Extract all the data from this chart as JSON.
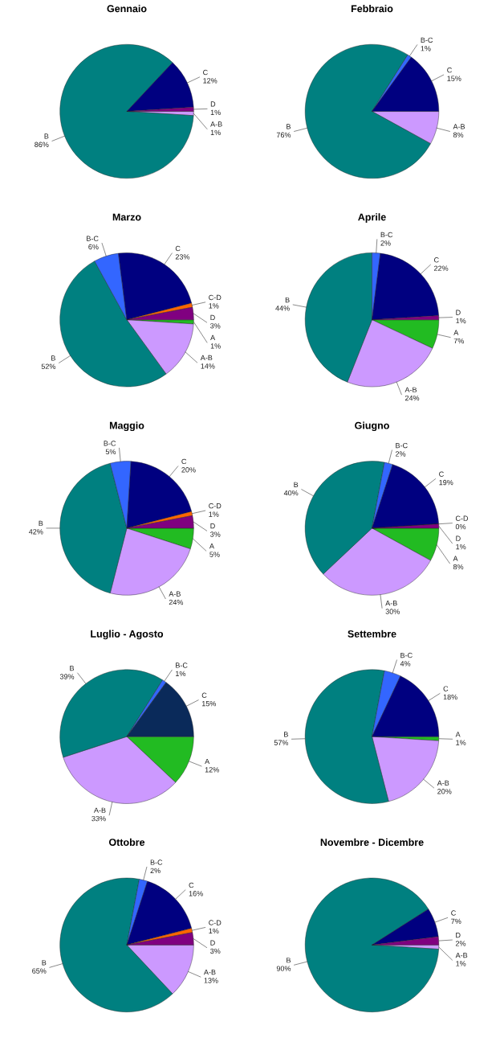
{
  "chart_data": [
    {
      "type": "pie",
      "title": "Gennaio",
      "categories": [
        "A-B",
        "B",
        "C",
        "D"
      ],
      "values": [
        1,
        86,
        12,
        1
      ],
      "value_labels": [
        "1%",
        "86%",
        "12%",
        "1%"
      ],
      "colors": [
        "#cc99ff",
        "#008080",
        "#000080",
        "#800080"
      ]
    },
    {
      "type": "pie",
      "title": "Febbraio",
      "categories": [
        "A-B",
        "B",
        "B-C",
        "C"
      ],
      "values": [
        8,
        76,
        1,
        15
      ],
      "value_labels": [
        "8%",
        "76%",
        "1%",
        "15%"
      ],
      "colors": [
        "#cc99ff",
        "#008080",
        "#3366ff",
        "#000080"
      ]
    },
    {
      "type": "pie",
      "title": "Marzo",
      "categories": [
        "A",
        "A-B",
        "B",
        "B-C",
        "C",
        "C-D",
        "D"
      ],
      "values": [
        1,
        14,
        52,
        6,
        23,
        1,
        3
      ],
      "value_labels": [
        "1%",
        "14%",
        "52%",
        "6%",
        "23%",
        "1%",
        "3%"
      ],
      "colors": [
        "#22bb22",
        "#cc99ff",
        "#008080",
        "#3366ff",
        "#000080",
        "#ff6600",
        "#800080"
      ]
    },
    {
      "type": "pie",
      "title": "Aprile",
      "categories": [
        "A",
        "A-B",
        "B",
        "B-C",
        "C",
        "D"
      ],
      "values": [
        7,
        24,
        44,
        2,
        22,
        1
      ],
      "value_labels": [
        "7%",
        "24%",
        "44%",
        "2%",
        "22%",
        "1%"
      ],
      "colors": [
        "#22bb22",
        "#cc99ff",
        "#008080",
        "#3366ff",
        "#000080",
        "#800080"
      ]
    },
    {
      "type": "pie",
      "title": "Maggio",
      "categories": [
        "A",
        "A-B",
        "B",
        "B-C",
        "C",
        "C-D",
        "D"
      ],
      "values": [
        5,
        24,
        42,
        5,
        20,
        1,
        3
      ],
      "value_labels": [
        "5%",
        "24%",
        "42%",
        "5%",
        "20%",
        "1%",
        "3%"
      ],
      "colors": [
        "#22bb22",
        "#cc99ff",
        "#008080",
        "#3366ff",
        "#000080",
        "#ff6600",
        "#800080"
      ]
    },
    {
      "type": "pie",
      "title": "Giugno",
      "categories": [
        "A",
        "A-B",
        "B",
        "B-C",
        "C",
        "C-D",
        "D"
      ],
      "values": [
        8,
        30,
        40,
        2,
        19,
        0,
        1
      ],
      "value_labels": [
        "8%",
        "30%",
        "40%",
        "2%",
        "19%",
        "0%",
        "1%"
      ],
      "colors": [
        "#22bb22",
        "#cc99ff",
        "#008080",
        "#3366ff",
        "#000080",
        "#ff6600",
        "#800080"
      ]
    },
    {
      "type": "pie",
      "title": "Luglio - Agosto",
      "categories": [
        "A",
        "A-B",
        "B",
        "B-C",
        "C"
      ],
      "values": [
        12,
        33,
        39,
        1,
        15
      ],
      "value_labels": [
        "12%",
        "33%",
        "39%",
        "1%",
        "15%"
      ],
      "colors": [
        "#22bb22",
        "#cc99ff",
        "#008080",
        "#3366ff",
        "#0a2a5a"
      ]
    },
    {
      "type": "pie",
      "title": "Settembre",
      "categories": [
        "A",
        "A-B",
        "B",
        "B-C",
        "C"
      ],
      "values": [
        1,
        20,
        57,
        4,
        18
      ],
      "value_labels": [
        "1%",
        "20%",
        "57%",
        "4%",
        "18%"
      ],
      "colors": [
        "#22bb22",
        "#cc99ff",
        "#008080",
        "#3366ff",
        "#000080"
      ]
    },
    {
      "type": "pie",
      "title": "Ottobre",
      "categories": [
        "A-B",
        "B",
        "B-C",
        "C",
        "C-D",
        "D"
      ],
      "values": [
        13,
        65,
        2,
        16,
        1,
        3
      ],
      "value_labels": [
        "13%",
        "65%",
        "2%",
        "16%",
        "1%",
        "3%"
      ],
      "colors": [
        "#cc99ff",
        "#008080",
        "#3366ff",
        "#000080",
        "#ff6600",
        "#800080"
      ]
    },
    {
      "type": "pie",
      "title": "Novembre - Dicembre",
      "categories": [
        "A-B",
        "B",
        "C",
        "D"
      ],
      "values": [
        1,
        90,
        7,
        2
      ],
      "value_labels": [
        "1%",
        "90%",
        "7%",
        "2%"
      ],
      "colors": [
        "#cc99ff",
        "#008080",
        "#000080",
        "#800080"
      ]
    }
  ]
}
